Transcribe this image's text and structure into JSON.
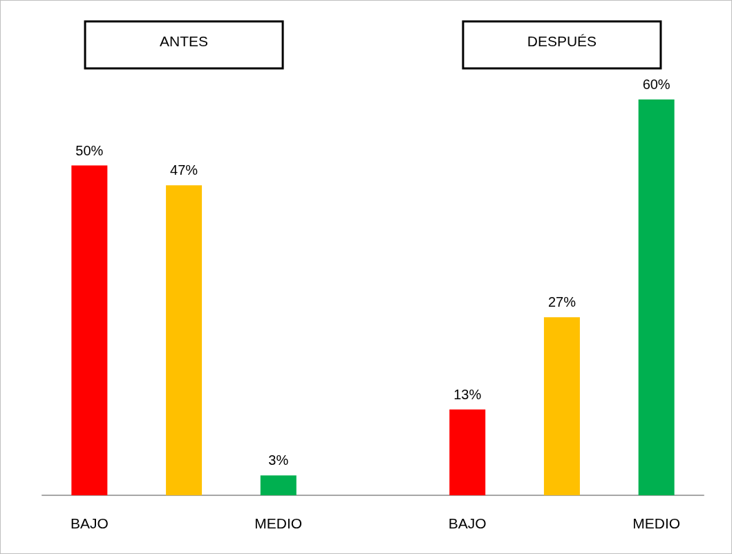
{
  "chart_data": {
    "type": "bar",
    "annotations": [
      "ANTES",
      "DESPUÉS"
    ],
    "categories": [
      "BAJO",
      null,
      "MEDIO",
      null,
      "BAJO",
      null,
      "MEDIO"
    ],
    "values": [
      50,
      47,
      3,
      null,
      13,
      27,
      60
    ],
    "colors": [
      "#ff0000",
      "#ffc000",
      "#00b050",
      null,
      "#ff0000",
      "#ffc000",
      "#00b050"
    ],
    "value_labels": [
      "50%",
      "47%",
      "3%",
      null,
      "13%",
      "27%",
      "60%"
    ]
  }
}
